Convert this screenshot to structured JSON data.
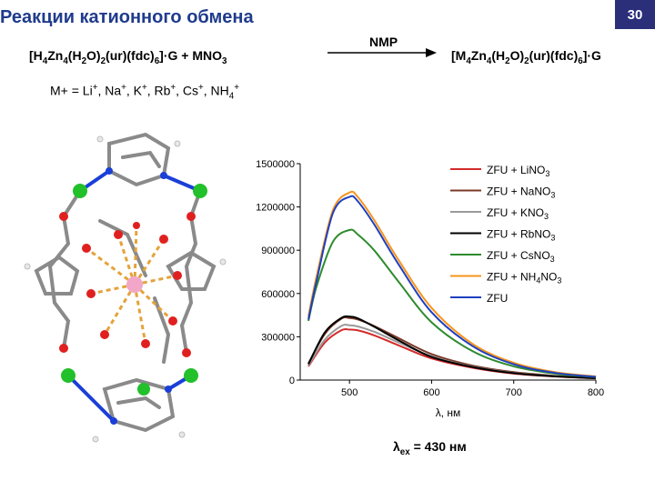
{
  "slide": {
    "title": "Реакции катионного обмена",
    "page_number": "30"
  },
  "reaction": {
    "left": "[H4Zn4(H2O)2(ur)(fdc)6]·G + MNO3",
    "arrow_label": "NMP",
    "right": "[M4Zn4(H2O)2(ur)(fdc)6]·G"
  },
  "ions_line": "M+ = Li+, Na+, K+, Rb+, Cs+, NH4+",
  "excitation_label": "λex = 430 нм",
  "colors": {
    "title": "#1f3b8c",
    "badge": "#2b2f7a"
  },
  "chart_data": {
    "type": "line",
    "xlabel": "λ, нм",
    "ylabel": "",
    "xlim": [
      440,
      800
    ],
    "ylim": [
      0,
      1500000
    ],
    "x_ticks": [
      500,
      600,
      700,
      800
    ],
    "y_ticks": [
      0,
      300000,
      600000,
      900000,
      1200000,
      1500000
    ],
    "legend_position": "top-right",
    "series": [
      {
        "name": "ZFU + LiNO3",
        "color": "#d42a2a",
        "x": [
          450,
          470,
          490,
          500,
          510,
          530,
          560,
          600,
          650,
          700,
          750,
          800
        ],
        "y": [
          95000,
          260000,
          345000,
          350000,
          345000,
          310000,
          240000,
          150000,
          85000,
          45000,
          25000,
          12000
        ]
      },
      {
        "name": "ZFU + NaNO3",
        "color": "#7b3a2a",
        "x": [
          450,
          470,
          490,
          500,
          510,
          530,
          560,
          600,
          650,
          700,
          750,
          800
        ],
        "y": [
          115000,
          320000,
          425000,
          430000,
          420000,
          375000,
          290000,
          180000,
          100000,
          55000,
          30000,
          15000
        ]
      },
      {
        "name": "ZFU + KNO3",
        "color": "#9a9a9a",
        "x": [
          450,
          470,
          490,
          500,
          510,
          530,
          560,
          600,
          650,
          700,
          750,
          800
        ],
        "y": [
          100000,
          280000,
          375000,
          380000,
          372000,
          335000,
          260000,
          165000,
          92000,
          50000,
          28000,
          14000
        ]
      },
      {
        "name": "ZFU + RbNO3",
        "color": "#000000",
        "x": [
          450,
          470,
          490,
          500,
          510,
          530,
          560,
          600,
          650,
          700,
          750,
          800
        ],
        "y": [
          110000,
          330000,
          430000,
          440000,
          428000,
          370000,
          275000,
          160000,
          90000,
          48000,
          26000,
          13000
        ]
      },
      {
        "name": "ZFU + CsNO3",
        "color": "#2e8b2e",
        "x": [
          450,
          460,
          480,
          500,
          510,
          530,
          560,
          600,
          650,
          700,
          750,
          800
        ],
        "y": [
          410000,
          650000,
          960000,
          1040000,
          1010000,
          900000,
          680000,
          400000,
          200000,
          95000,
          45000,
          20000
        ]
      },
      {
        "name": "ZFU + NH4NO3",
        "color": "#f7941d",
        "x": [
          450,
          460,
          480,
          500,
          510,
          530,
          560,
          600,
          650,
          700,
          750,
          800
        ],
        "y": [
          440000,
          720000,
          1180000,
          1300000,
          1270000,
          1110000,
          830000,
          500000,
          250000,
          120000,
          55000,
          25000
        ]
      },
      {
        "name": "ZFU",
        "color": "#1f3fbf",
        "x": [
          450,
          460,
          480,
          500,
          510,
          530,
          560,
          600,
          650,
          700,
          750,
          800
        ],
        "y": [
          420000,
          690000,
          1160000,
          1270000,
          1240000,
          1080000,
          800000,
          470000,
          235000,
          110000,
          50000,
          22000
        ]
      }
    ]
  }
}
